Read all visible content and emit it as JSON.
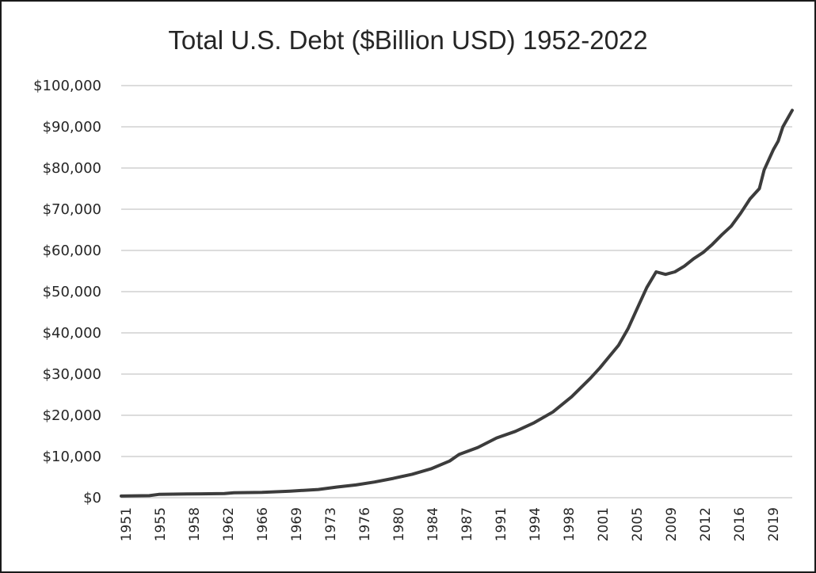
{
  "chart_data": {
    "type": "line",
    "title": "Total U.S. Debt ($Billion USD) 1952-2022",
    "xlabel": "",
    "ylabel": "",
    "ylim": [
      0,
      100000
    ],
    "xlim": [
      1951,
      2022.5
    ],
    "grid": true,
    "legend": "none",
    "y_ticks": [
      "$0",
      "$10,000",
      "$20,000",
      "$30,000",
      "$40,000",
      "$50,000",
      "$60,000",
      "$70,000",
      "$80,000",
      "$90,000",
      "$100,000"
    ],
    "x_ticks": [
      "1951",
      "1955",
      "1958",
      "1962",
      "1966",
      "1969",
      "1973",
      "1976",
      "1980",
      "1984",
      "1987",
      "1991",
      "1994",
      "1998",
      "2001",
      "2005",
      "2009",
      "2012",
      "2016",
      "2019"
    ],
    "series_color": "#3c3c3c",
    "series": [
      {
        "x": [
          1951,
          1954,
          1955,
          1958,
          1962,
          1963,
          1966,
          1969,
          1972,
          1974,
          1976,
          1978,
          1980,
          1982,
          1984,
          1986,
          1987,
          1989,
          1991,
          1993,
          1995,
          1997,
          1999,
          2001,
          2002,
          2004,
          2005,
          2006,
          2007,
          2008,
          2009,
          2010,
          2011,
          2012,
          2013,
          2014,
          2015,
          2016,
          2017,
          2018,
          2019,
          2019.5,
          2020,
          2020.5,
          2021,
          2021.5,
          2022,
          2022.5
        ],
        "y": [
          400,
          500,
          800,
          900,
          1000,
          1200,
          1300,
          1600,
          2000,
          2600,
          3100,
          3800,
          4700,
          5700,
          7000,
          8900,
          10500,
          12200,
          14500,
          16100,
          18200,
          20800,
          24500,
          29000,
          31500,
          37000,
          41000,
          46000,
          51000,
          54800,
          54200,
          54800,
          56200,
          58000,
          59500,
          61500,
          63800,
          65900,
          69000,
          72500,
          75000,
          79500,
          82000,
          84500,
          86500,
          90000,
          92000,
          94000
        ]
      }
    ]
  }
}
